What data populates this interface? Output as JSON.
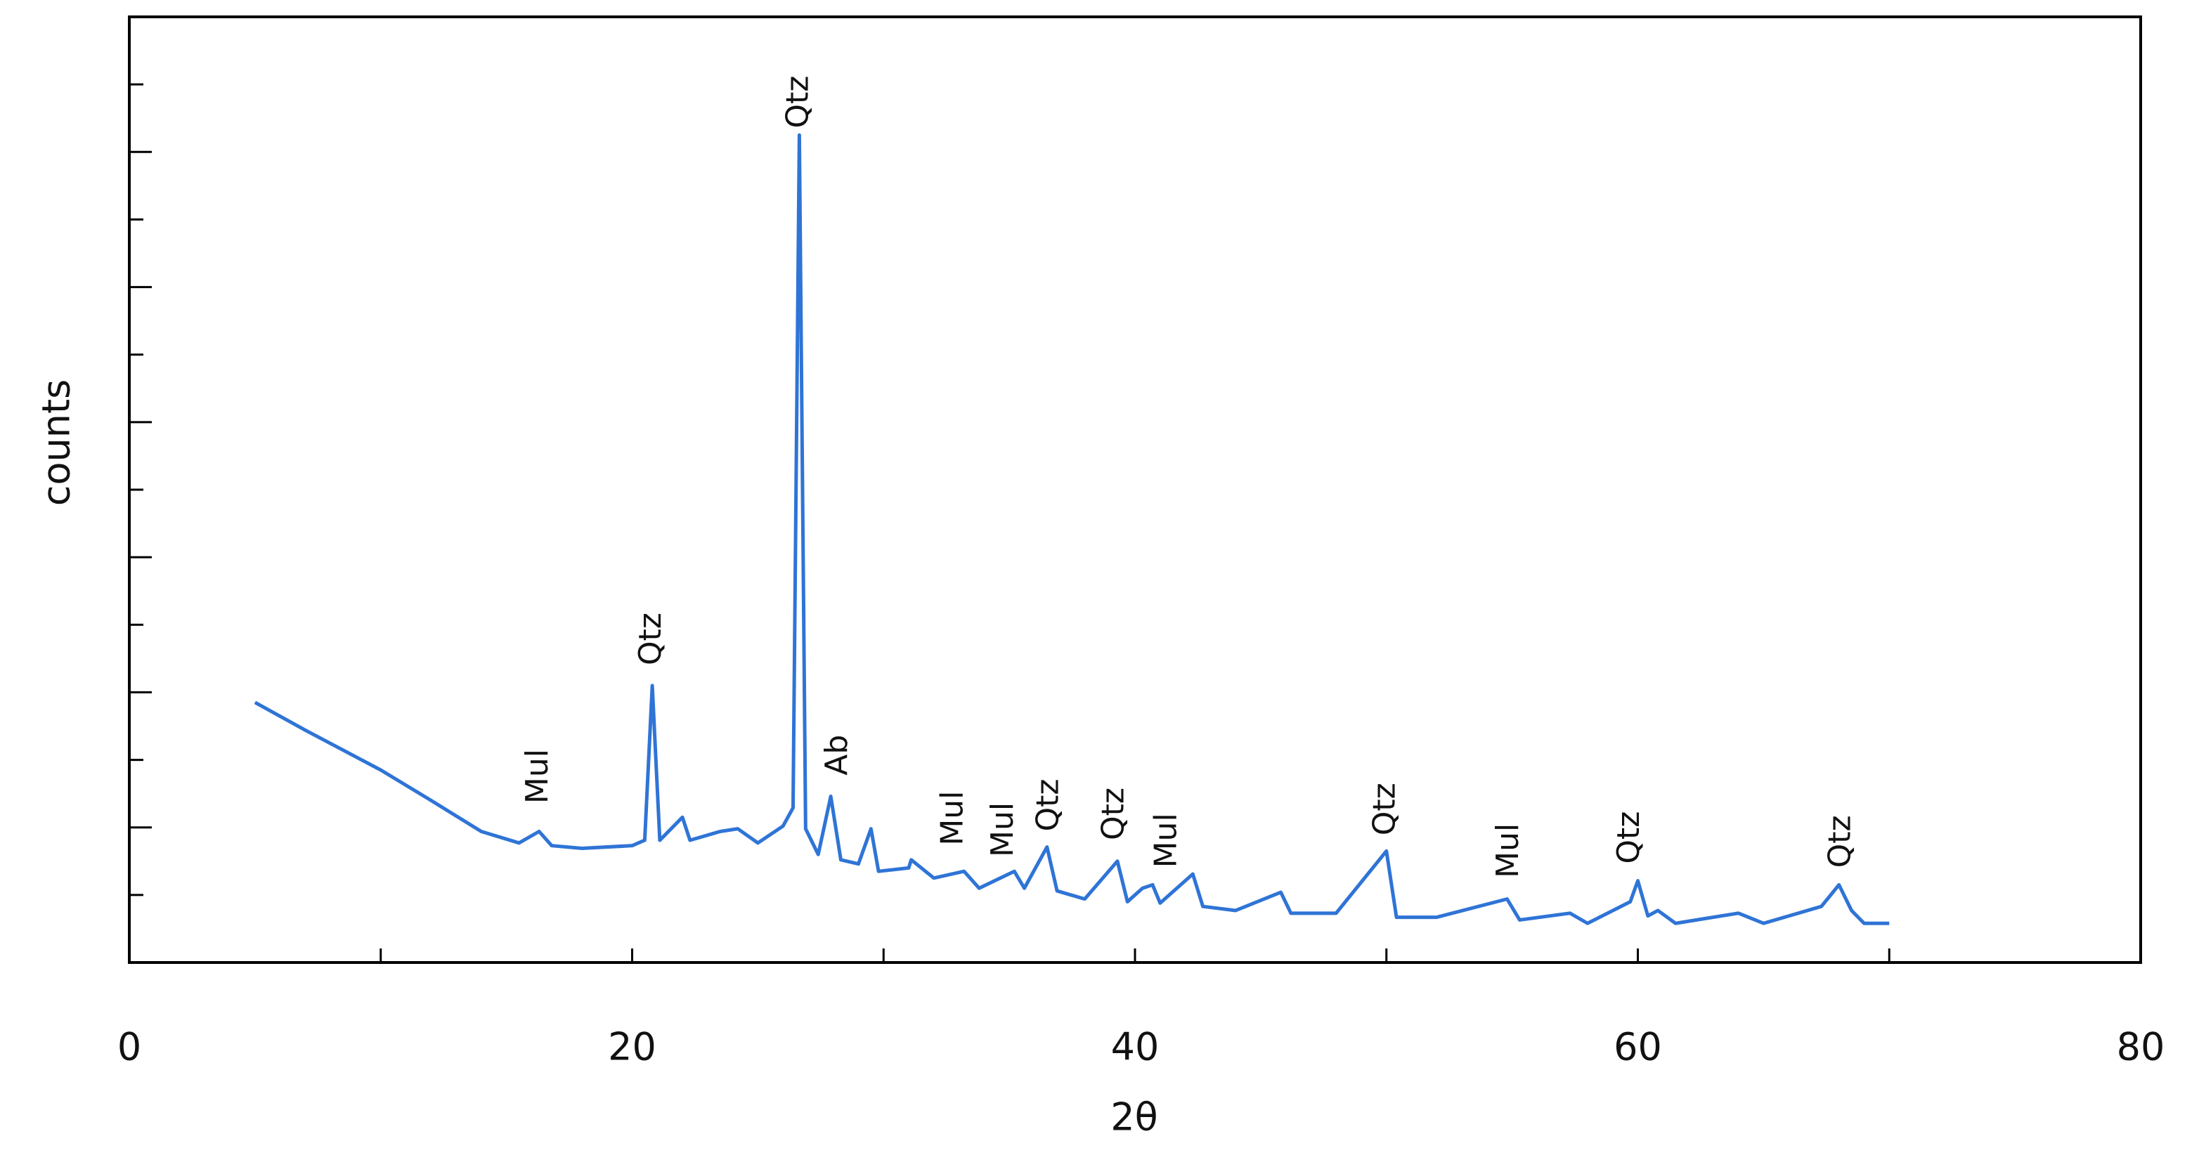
{
  "chart_data": {
    "type": "line",
    "xlabel": "2θ",
    "ylabel": "counts",
    "xlim": [
      0,
      80
    ],
    "xticks": [
      0,
      20,
      40,
      60,
      80
    ],
    "xminor_ticks": [
      10,
      30,
      50,
      70
    ],
    "ylim": [
      0,
      14
    ],
    "yticks": [
      2,
      4,
      6,
      8,
      10,
      12
    ],
    "yminor_ticks": [
      1,
      3,
      5,
      7,
      9,
      11,
      13
    ],
    "ytick_labels": false,
    "series": [
      {
        "name": "counts",
        "color": "#2f74d6",
        "x": [
          5,
          7,
          10,
          12,
          14,
          15.5,
          16.3,
          16.8,
          18,
          20,
          20.5,
          20.8,
          21.1,
          22,
          22.3,
          23.5,
          24.2,
          25,
          26,
          26.4,
          26.65,
          26.9,
          27.4,
          27.9,
          28.3,
          29,
          29.5,
          29.8,
          31,
          31.1,
          32,
          33.2,
          33.8,
          35.2,
          35.6,
          36.5,
          36.9,
          38,
          39.3,
          39.7,
          40.3,
          40.7,
          41,
          42.3,
          42.7,
          44,
          45.8,
          46.2,
          48,
          50,
          50.4,
          52,
          54.8,
          55.3,
          57.3,
          58,
          59.7,
          60,
          60.4,
          60.8,
          61.5,
          64,
          65,
          67.3,
          68,
          68.5,
          69,
          70
        ],
        "values": [
          3.85,
          3.44,
          2.85,
          2.4,
          1.94,
          1.77,
          1.94,
          1.73,
          1.69,
          1.73,
          1.81,
          4.1,
          1.81,
          2.15,
          1.81,
          1.94,
          1.98,
          1.77,
          2.02,
          2.29,
          12.25,
          1.98,
          1.6,
          2.46,
          1.52,
          1.46,
          1.98,
          1.35,
          1.4,
          1.52,
          1.25,
          1.35,
          1.1,
          1.35,
          1.1,
          1.71,
          1.06,
          0.94,
          1.5,
          0.9,
          1.1,
          1.15,
          0.88,
          1.31,
          0.83,
          0.77,
          1.04,
          0.73,
          0.73,
          1.65,
          0.67,
          0.67,
          0.94,
          0.63,
          0.73,
          0.58,
          0.9,
          1.21,
          0.69,
          0.77,
          0.58,
          0.73,
          0.58,
          0.83,
          1.15,
          0.77,
          0.58,
          0.58
        ]
      }
    ],
    "annotations": [
      {
        "text": "Mul",
        "x": 16.3,
        "y": 2.35
      },
      {
        "text": "Qtz",
        "x": 20.8,
        "y": 4.4
      },
      {
        "text": "Qtz",
        "x": 26.65,
        "y": 12.35
      },
      {
        "text": "Ab",
        "x": 28.2,
        "y": 2.77
      },
      {
        "text": "Mul",
        "x": 32.8,
        "y": 1.73
      },
      {
        "text": "Mul",
        "x": 34.8,
        "y": 1.56
      },
      {
        "text": "Qtz",
        "x": 36.6,
        "y": 1.94
      },
      {
        "text": "Qtz",
        "x": 39.2,
        "y": 1.81
      },
      {
        "text": "Mul",
        "x": 41.3,
        "y": 1.4
      },
      {
        "text": "Qtz",
        "x": 50,
        "y": 1.88
      },
      {
        "text": "Mul",
        "x": 54.9,
        "y": 1.25
      },
      {
        "text": "Qtz",
        "x": 59.7,
        "y": 1.46
      },
      {
        "text": "Qtz",
        "x": 68.1,
        "y": 1.4
      }
    ]
  }
}
